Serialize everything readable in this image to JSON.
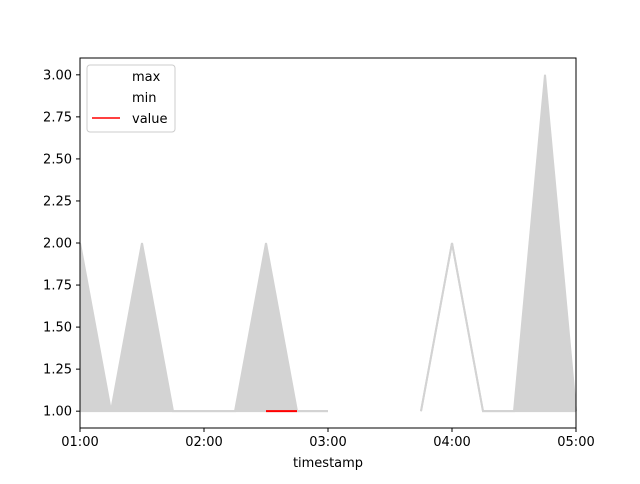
{
  "chart_data": {
    "type": "area",
    "xlabel": "timestamp",
    "ylabel": "",
    "xlim": [
      "01:00",
      "05:00"
    ],
    "ylim": [
      0.9,
      3.1
    ],
    "x_ticks": [
      "01:00",
      "02:00",
      "03:00",
      "04:00",
      "05:00"
    ],
    "y_ticks": [
      "1.00",
      "1.25",
      "1.50",
      "1.75",
      "2.00",
      "2.25",
      "2.50",
      "2.75",
      "3.00"
    ],
    "legend_position": "top-left",
    "band_color": "#d3d3d3",
    "value_color": "#ff0000",
    "series": [
      {
        "name": "max",
        "x": [
          "01:00",
          "01:15",
          "01:30",
          "01:45",
          "02:00",
          "02:15",
          "02:30",
          "02:45",
          "03:00",
          "03:45",
          "04:00",
          "04:15",
          "04:30",
          "04:45",
          "05:00"
        ],
        "values": [
          2,
          1,
          2,
          1,
          1,
          1,
          2,
          1,
          1,
          1,
          2,
          1,
          1,
          3,
          1
        ]
      },
      {
        "name": "min",
        "x": [
          "01:00",
          "01:15",
          "01:30",
          "01:45",
          "02:00",
          "02:15",
          "02:30",
          "02:45",
          "03:00",
          "03:45",
          "04:00",
          "04:15",
          "04:30",
          "04:45",
          "05:00"
        ],
        "values": [
          1,
          1,
          1,
          1,
          1,
          1,
          1,
          1,
          1,
          1,
          2,
          1,
          1,
          1,
          1
        ]
      },
      {
        "name": "value",
        "x": [
          "02:30",
          "02:45"
        ],
        "values": [
          1,
          1
        ]
      }
    ]
  }
}
